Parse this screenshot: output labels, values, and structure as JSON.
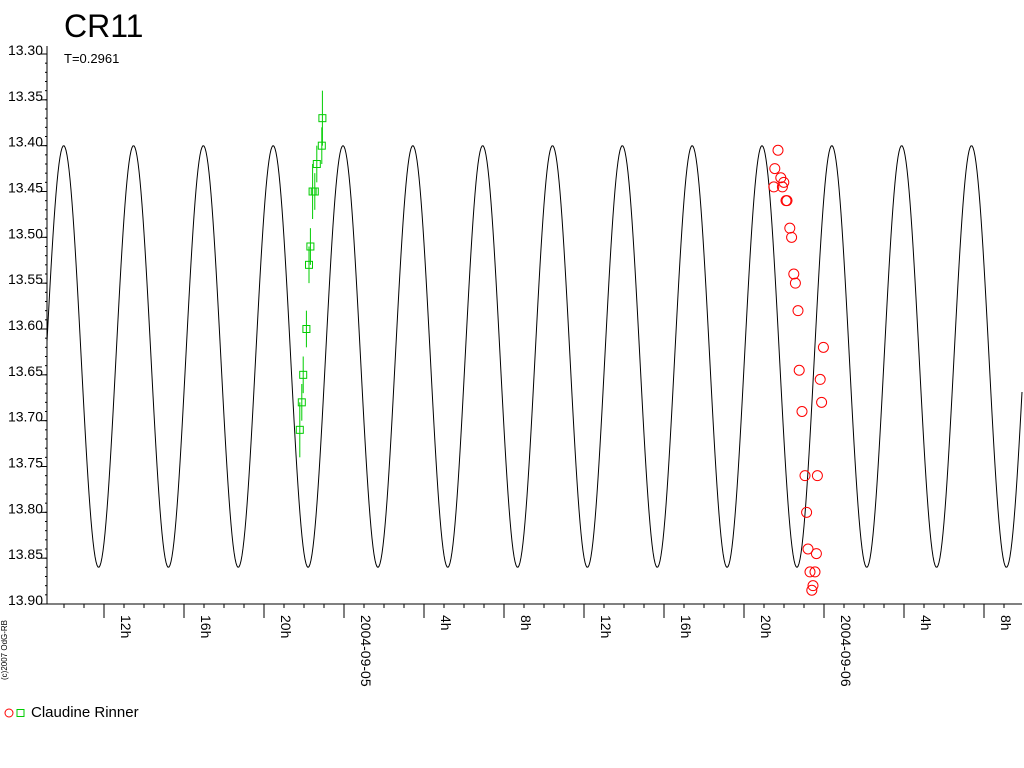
{
  "title": "CR11",
  "subtitle": "T=0.2961",
  "copyright": "(c)2007 OdG-RB",
  "legend": {
    "label": "Claudine Rinner",
    "colors": [
      "#ff0000",
      "#00cc00"
    ]
  },
  "colors": {
    "model": "#000000",
    "series_red": "#ff0000",
    "series_green": "#00cc00",
    "axis": "#000000"
  },
  "chart_data": {
    "type": "scatter",
    "title": "CR11",
    "subtitle": "T=0.2961",
    "xlabel": "",
    "ylabel": "",
    "y_inverted": true,
    "ylim": [
      13.3,
      13.9
    ],
    "xlim_hours": [
      9.2,
      57.0
    ],
    "y_ticks": [
      "13.30",
      "13.35",
      "13.40",
      "13.45",
      "13.50",
      "13.55",
      "13.60",
      "13.65",
      "13.70",
      "13.75",
      "13.80",
      "13.85",
      "13.90"
    ],
    "x_ticks": [
      {
        "h": 12,
        "label": "12h"
      },
      {
        "h": 16,
        "label": "16h"
      },
      {
        "h": 20,
        "label": "20h"
      },
      {
        "h": 24,
        "label": "2004-09-05"
      },
      {
        "h": 28,
        "label": "4h"
      },
      {
        "h": 32,
        "label": "8h"
      },
      {
        "h": 36,
        "label": "12h"
      },
      {
        "h": 40,
        "label": "16h"
      },
      {
        "h": 44,
        "label": "20h"
      },
      {
        "h": 48,
        "label": "2004-09-06"
      },
      {
        "h": 52,
        "label": "4h"
      },
      {
        "h": 56,
        "label": "8h"
      }
    ],
    "model": {
      "name": "",
      "period_hours": 3.4917,
      "peak_hour": 23.95,
      "max_mag": 13.4,
      "min_mag": 13.86
    },
    "series": [
      {
        "name": "",
        "marker": "square",
        "color": "#00cc00",
        "points": [
          {
            "x": 21.79,
            "y": 13.71,
            "err": 0.03
          },
          {
            "x": 21.89,
            "y": 13.68,
            "err": 0.02
          },
          {
            "x": 21.96,
            "y": 13.65,
            "err": 0.02
          },
          {
            "x": 22.12,
            "y": 13.6,
            "err": 0.02
          },
          {
            "x": 22.25,
            "y": 13.53,
            "err": 0.02
          },
          {
            "x": 22.32,
            "y": 13.51,
            "err": 0.02
          },
          {
            "x": 22.43,
            "y": 13.45,
            "err": 0.03
          },
          {
            "x": 22.54,
            "y": 13.45,
            "err": 0.02
          },
          {
            "x": 22.64,
            "y": 13.42,
            "err": 0.02
          },
          {
            "x": 22.89,
            "y": 13.4,
            "err": 0.02
          },
          {
            "x": 22.92,
            "y": 13.37,
            "err": 0.03
          }
        ]
      },
      {
        "name": "",
        "marker": "circle",
        "color": "#ff0000",
        "points": [
          {
            "x": 45.49,
            "y": 13.445
          },
          {
            "x": 45.54,
            "y": 13.425
          },
          {
            "x": 45.7,
            "y": 13.405
          },
          {
            "x": 45.84,
            "y": 13.435
          },
          {
            "x": 45.92,
            "y": 13.445
          },
          {
            "x": 45.99,
            "y": 13.44
          },
          {
            "x": 46.1,
            "y": 13.46
          },
          {
            "x": 46.15,
            "y": 13.46
          },
          {
            "x": 46.29,
            "y": 13.49
          },
          {
            "x": 46.38,
            "y": 13.5
          },
          {
            "x": 46.49,
            "y": 13.54
          },
          {
            "x": 46.57,
            "y": 13.55
          },
          {
            "x": 46.7,
            "y": 13.58
          },
          {
            "x": 46.76,
            "y": 13.645
          },
          {
            "x": 46.9,
            "y": 13.69
          },
          {
            "x": 47.05,
            "y": 13.76
          },
          {
            "x": 47.13,
            "y": 13.8
          },
          {
            "x": 47.2,
            "y": 13.84
          },
          {
            "x": 47.3,
            "y": 13.865
          },
          {
            "x": 47.39,
            "y": 13.885
          },
          {
            "x": 47.45,
            "y": 13.88
          },
          {
            "x": 47.55,
            "y": 13.865
          },
          {
            "x": 47.62,
            "y": 13.845
          },
          {
            "x": 47.67,
            "y": 13.76
          },
          {
            "x": 47.81,
            "y": 13.655
          },
          {
            "x": 47.88,
            "y": 13.68
          },
          {
            "x": 47.97,
            "y": 13.62
          }
        ]
      }
    ]
  }
}
